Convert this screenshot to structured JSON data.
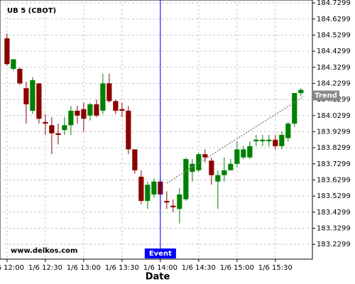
{
  "chart_data": {
    "type": "candlestick",
    "title": "UB 5 (CBOT)",
    "x_label": "Date",
    "watermark": "www.delkos.com",
    "up_color": "#008000",
    "down_color": "#8b0000",
    "grid": true,
    "xlim": [
      -1.1,
      47.8
    ],
    "xticks": [
      {
        "value": 0,
        "label": "1/6 12:00"
      },
      {
        "value": 6,
        "label": "1/6 12:30"
      },
      {
        "value": 12,
        "label": "1/6 13:00"
      },
      {
        "value": 18,
        "label": "1/6 13:30"
      },
      {
        "value": 24,
        "label": "1/6 14:00"
      },
      {
        "value": 30,
        "label": "1/6 14:30"
      },
      {
        "value": 36,
        "label": "1/6 15:00"
      },
      {
        "value": 42,
        "label": "1/6 15:30"
      }
    ],
    "ylim": [
      183.138,
      184.748
    ],
    "yticks": [
      183.2299,
      183.3299,
      183.4299,
      183.5299,
      183.6299,
      183.7299,
      183.8299,
      183.9299,
      184.0299,
      184.1299,
      184.2299,
      184.3299,
      184.4299,
      184.5299,
      184.6299,
      184.7299
    ],
    "open": [
      184.51,
      184.32,
      184.32,
      184.2,
      184.06,
      184.23,
      183.99,
      183.97,
      183.92,
      183.94,
      183.97,
      184.06,
      184.07,
      184.03,
      184.1,
      184.06,
      184.23,
      184.12,
      184.07,
      184.06,
      183.82,
      183.65,
      183.5,
      183.54,
      183.62,
      183.5,
      183.47,
      183.45,
      183.51,
      183.68,
      183.69,
      183.79,
      183.75,
      183.62,
      183.66,
      183.69,
      183.73,
      183.77,
      183.77,
      183.87,
      183.87,
      183.87,
      183.88,
      183.84,
      183.89,
      183.98,
      184.17
    ],
    "high": [
      184.54,
      184.38,
      184.33,
      184.24,
      184.27,
      184.23,
      184.04,
      184.02,
      183.98,
      184.02,
      184.09,
      184.09,
      184.11,
      184.11,
      184.13,
      184.29,
      184.29,
      184.13,
      184.11,
      184.09,
      183.82,
      183.69,
      183.62,
      183.64,
      183.64,
      183.56,
      183.51,
      183.58,
      183.77,
      183.76,
      183.8,
      183.82,
      183.77,
      183.69,
      183.77,
      183.76,
      183.87,
      183.84,
      183.87,
      183.91,
      183.91,
      183.91,
      183.91,
      183.93,
      183.99,
      184.17,
      184.2
    ],
    "low": [
      184.34,
      184.31,
      184.22,
      183.98,
      184.04,
      183.98,
      183.91,
      183.79,
      183.85,
      183.91,
      183.91,
      183.98,
      183.93,
      184.0,
      184.02,
      184.04,
      184.11,
      184.04,
      184.02,
      183.79,
      183.67,
      183.48,
      183.45,
      183.52,
      183.45,
      183.45,
      183.43,
      183.36,
      183.5,
      183.62,
      183.68,
      183.74,
      183.6,
      183.45,
      183.62,
      183.69,
      183.71,
      183.76,
      183.76,
      183.84,
      183.84,
      183.84,
      183.82,
      183.82,
      183.87,
      183.96,
      184.15
    ],
    "close": [
      184.35,
      184.38,
      184.23,
      184.1,
      184.25,
      184.01,
      183.98,
      183.92,
      183.91,
      183.97,
      184.06,
      184.03,
      184.01,
      184.1,
      184.03,
      184.23,
      184.12,
      184.06,
      184.06,
      183.82,
      183.69,
      183.5,
      183.6,
      183.62,
      183.54,
      183.49,
      183.46,
      183.54,
      183.76,
      183.73,
      183.79,
      183.77,
      183.66,
      183.66,
      183.69,
      183.73,
      183.82,
      183.82,
      183.84,
      183.88,
      183.88,
      183.88,
      183.84,
      183.91,
      183.98,
      184.17,
      184.19
    ],
    "event": {
      "label": "Event",
      "x": 24,
      "color": "#0000ff"
    },
    "trend": {
      "label": "Trend",
      "x": [
        25,
        46.5
      ],
      "y": [
        183.61,
        184.15
      ],
      "color": "#888888"
    }
  }
}
